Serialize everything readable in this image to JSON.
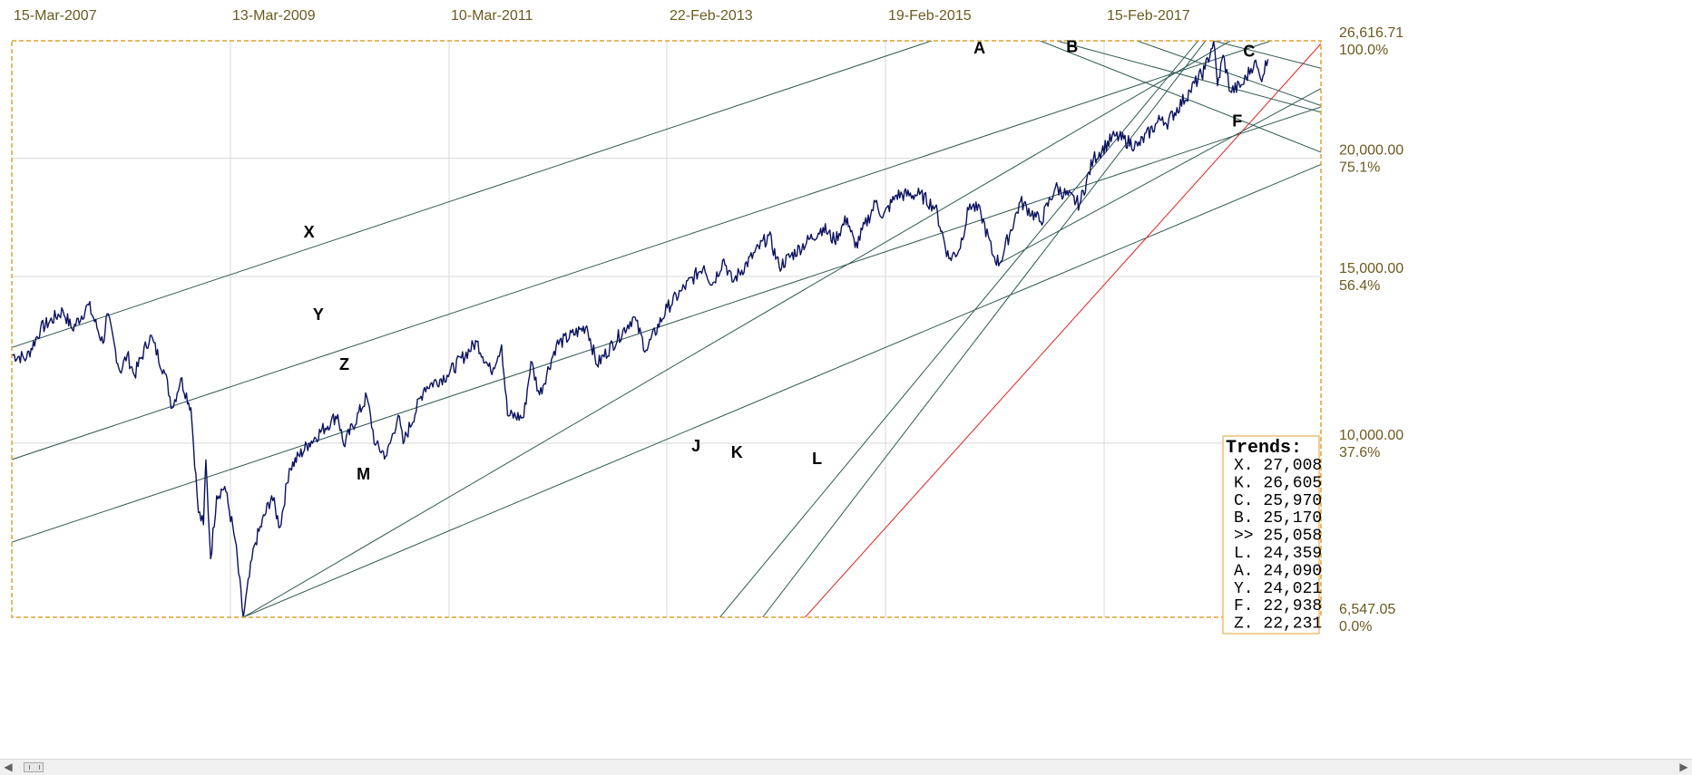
{
  "chart_data": {
    "type": "line",
    "title": "",
    "xlabel": "",
    "ylabel": "",
    "scale": "log",
    "grid": true,
    "x_tick_labels": [
      "15-Mar-2007",
      "13-Mar-2009",
      "10-Mar-2011",
      "22-Feb-2013",
      "19-Feb-2015",
      "15-Feb-2017"
    ],
    "y_ticks": [
      {
        "value": 26616.71,
        "price": "26,616.71",
        "pct": "100.0%"
      },
      {
        "value": 20000,
        "price": "20,000.00",
        "pct": "75.1%"
      },
      {
        "value": 15000,
        "price": "15,000.00",
        "pct": "56.4%"
      },
      {
        "value": 10000,
        "price": "10,000.00",
        "pct": "37.6%"
      },
      {
        "value": 6547.05,
        "price": "6,547.05",
        "pct": "0.0%"
      }
    ],
    "ylim": [
      6547.05,
      26616.71
    ],
    "xlim": [
      "2007-01-25",
      "2019-01-20"
    ],
    "series": [
      {
        "color": "#0a1260",
        "points": [
          [
            "2007-01-25",
            12400
          ],
          [
            "2007-03-15",
            12300
          ],
          [
            "2007-05-01",
            13200
          ],
          [
            "2007-07-15",
            13800
          ],
          [
            "2007-08-15",
            13200
          ],
          [
            "2007-10-09",
            14000
          ],
          [
            "2007-11-26",
            12750
          ],
          [
            "2007-12-10",
            13700
          ],
          [
            "2008-01-22",
            11900
          ],
          [
            "2008-02-15",
            12400
          ],
          [
            "2008-03-10",
            11800
          ],
          [
            "2008-05-02",
            13000
          ],
          [
            "2008-06-20",
            11850
          ],
          [
            "2008-07-15",
            10900
          ],
          [
            "2008-08-12",
            11700
          ],
          [
            "2008-09-15",
            10900
          ],
          [
            "2008-10-10",
            8450
          ],
          [
            "2008-10-27",
            8200
          ],
          [
            "2008-11-04",
            9600
          ],
          [
            "2008-11-20",
            7550
          ],
          [
            "2008-12-10",
            8800
          ],
          [
            "2009-01-06",
            9000
          ],
          [
            "2009-02-10",
            7900
          ],
          [
            "2009-03-09",
            6547
          ],
          [
            "2009-04-15",
            7800
          ],
          [
            "2009-06-12",
            8800
          ],
          [
            "2009-07-10",
            8150
          ],
          [
            "2009-08-10",
            9400
          ],
          [
            "2009-10-15",
            10000
          ],
          [
            "2009-12-28",
            10550
          ],
          [
            "2010-01-19",
            10720
          ],
          [
            "2010-02-08",
            9950
          ],
          [
            "2010-04-26",
            11200
          ],
          [
            "2010-05-25",
            9950
          ],
          [
            "2010-07-02",
            9700
          ],
          [
            "2010-08-09",
            10700
          ],
          [
            "2010-08-26",
            9990
          ],
          [
            "2010-11-05",
            11450
          ],
          [
            "2011-01-20",
            11800
          ],
          [
            "2011-04-29",
            12800
          ],
          [
            "2011-06-15",
            11900
          ],
          [
            "2011-07-21",
            12700
          ],
          [
            "2011-08-10",
            10700
          ],
          [
            "2011-10-03",
            10650
          ],
          [
            "2011-10-27",
            12200
          ],
          [
            "2011-11-25",
            11250
          ],
          [
            "2012-01-20",
            12700
          ],
          [
            "2012-05-01",
            13300
          ],
          [
            "2012-06-04",
            12100
          ],
          [
            "2012-10-05",
            13600
          ],
          [
            "2012-11-15",
            12540
          ],
          [
            "2013-01-25",
            13900
          ],
          [
            "2013-03-15",
            14500
          ],
          [
            "2013-05-28",
            15400
          ],
          [
            "2013-06-24",
            14700
          ],
          [
            "2013-08-02",
            15650
          ],
          [
            "2013-08-30",
            14800
          ],
          [
            "2013-12-31",
            16580
          ],
          [
            "2014-02-03",
            15370
          ],
          [
            "2014-06-30",
            16900
          ],
          [
            "2014-08-07",
            16370
          ],
          [
            "2014-09-19",
            17300
          ],
          [
            "2014-10-15",
            16100
          ],
          [
            "2014-12-26",
            18050
          ],
          [
            "2015-01-15",
            17300
          ],
          [
            "2015-03-02",
            18290
          ],
          [
            "2015-05-19",
            18310
          ],
          [
            "2015-07-10",
            17760
          ],
          [
            "2015-08-25",
            15660
          ],
          [
            "2015-09-28",
            16000
          ],
          [
            "2015-11-03",
            17900
          ],
          [
            "2015-12-10",
            17500
          ],
          [
            "2016-01-20",
            15770
          ],
          [
            "2016-02-11",
            15500
          ],
          [
            "2016-04-20",
            18000
          ],
          [
            "2016-06-27",
            17140
          ],
          [
            "2016-08-15",
            18630
          ],
          [
            "2016-11-04",
            17890
          ],
          [
            "2016-12-20",
            19970
          ],
          [
            "2017-03-01",
            21120
          ],
          [
            "2017-05-17",
            20600
          ],
          [
            "2017-08-08",
            22120
          ],
          [
            "2017-08-21",
            21750
          ],
          [
            "2017-11-08",
            23560
          ],
          [
            "2017-12-28",
            24840
          ],
          [
            "2018-01-26",
            26616
          ],
          [
            "2018-02-08",
            23860
          ],
          [
            "2018-02-27",
            25700
          ],
          [
            "2018-03-23",
            23530
          ],
          [
            "2018-05-03",
            23930
          ],
          [
            "2018-06-12",
            25320
          ],
          [
            "2018-07-02",
            24270
          ],
          [
            "2018-07-27",
            25450
          ]
        ]
      }
    ],
    "trendlines": [
      {
        "label": "X",
        "color": "#2f5a52",
        "points": [
          [
            "2007-01-25",
            12620
          ],
          [
            "2019-01-20",
            36500
          ]
        ]
      },
      {
        "label": "Y",
        "color": "#2f5a52",
        "points": [
          [
            "2007-01-25",
            9610
          ],
          [
            "2019-01-20",
            27710
          ]
        ]
      },
      {
        "label": "Z",
        "color": "#2f5a52",
        "points": [
          [
            "2007-01-25",
            7860
          ],
          [
            "2019-01-20",
            22660
          ]
        ]
      },
      {
        "label": "M",
        "color": "#2f5a52",
        "points": [
          [
            "2009-03-09",
            6547
          ],
          [
            "2019-01-20",
            19700
          ]
        ]
      },
      {
        "label": "J",
        "color": "#2f5a52",
        "points": [
          [
            "2017-12-05",
            26616
          ],
          [
            "2013-07-20",
            6547
          ]
        ]
      },
      {
        "label": "K",
        "color": "#2f5a52",
        "points": [
          [
            "2017-12-30",
            26616
          ],
          [
            "2013-12-10",
            6547
          ]
        ]
      },
      {
        "label": "L",
        "color": "#e02020",
        "points": [
          [
            "2014-05-01",
            6547
          ],
          [
            "2019-01-20",
            26430
          ]
        ]
      },
      {
        "label": "A",
        "color": "#2f5a52",
        "points": [
          [
            "2016-06-25",
            26616
          ],
          [
            "2019-01-20",
            20300
          ]
        ]
      },
      {
        "label": "B",
        "color": "#2f5a52",
        "points": [
          [
            "2017-05-15",
            26616
          ],
          [
            "2019-01-20",
            22730
          ]
        ]
      },
      {
        "label": "C",
        "color": "#2f5a52",
        "points": [
          [
            "2018-01-26",
            26616
          ],
          [
            "2019-01-20",
            24900
          ]
        ]
      },
      {
        "label": "F",
        "color": "#2f5a52",
        "points": [
          [
            "2016-08-20",
            26616
          ],
          [
            "2019-01-20",
            22370
          ]
        ]
      },
      {
        "label": "",
        "color": "#2f5a52",
        "points": [
          [
            "2009-03-09",
            6547
          ],
          [
            "2018-03-23",
            26616
          ]
        ]
      },
      {
        "label": "",
        "color": "#2f5a52",
        "points": [
          [
            "2016-02-11",
            15500
          ],
          [
            "2019-01-20",
            23700
          ]
        ]
      }
    ],
    "trend_labels": [
      {
        "label": "X",
        "x": "2009-10-15",
        "y": 16500,
        "color": "#000000"
      },
      {
        "label": "Y",
        "x": "2009-11-15",
        "y": 13500,
        "color": "#000000"
      },
      {
        "label": "Z",
        "x": "2010-02-10",
        "y": 11950,
        "color": "#000000"
      },
      {
        "label": "M",
        "x": "2010-04-15",
        "y": 9150,
        "color": "#000000"
      },
      {
        "label": "J",
        "x": "2013-05-01",
        "y": 9800,
        "color": "#000000"
      },
      {
        "label": "K",
        "x": "2013-09-15",
        "y": 9650,
        "color": "#000000"
      },
      {
        "label": "L",
        "x": "2014-06-10",
        "y": 9500,
        "color": "#e02020"
      },
      {
        "label": "A",
        "x": "2015-12-05",
        "y": 25800,
        "color": "#000000"
      },
      {
        "label": "B",
        "x": "2016-10-10",
        "y": 25900,
        "color": "#000000"
      },
      {
        "label": "C",
        "x": "2018-05-25",
        "y": 25600,
        "color": "#000000"
      },
      {
        "label": "F",
        "x": "2018-04-15",
        "y": 21600,
        "color": "#000000"
      }
    ],
    "legend": {
      "title": "Trends:",
      "placement": "bottom-right",
      "entries": [
        {
          "label": "X. 27,008",
          "color": "#000000"
        },
        {
          "label": "K. 26,605",
          "color": "#000000"
        },
        {
          "label": "C. 25,970",
          "color": "#000000"
        },
        {
          "label": "B. 25,170",
          "color": "#000000"
        },
        {
          "label": ">> 25,058",
          "color": "#000000"
        },
        {
          "label": "L. 24,359",
          "color": "#e02020"
        },
        {
          "label": "A. 24,090",
          "color": "#000000"
        },
        {
          "label": "Y. 24,021",
          "color": "#000000"
        },
        {
          "label": "F. 22,938",
          "color": "#000000"
        },
        {
          "label": "Z. 22,231",
          "color": "#000000"
        }
      ]
    },
    "colors": {
      "frame": "#e0a030",
      "grid": "#d8d8d8",
      "axis_text": "#6b5a1f"
    }
  }
}
